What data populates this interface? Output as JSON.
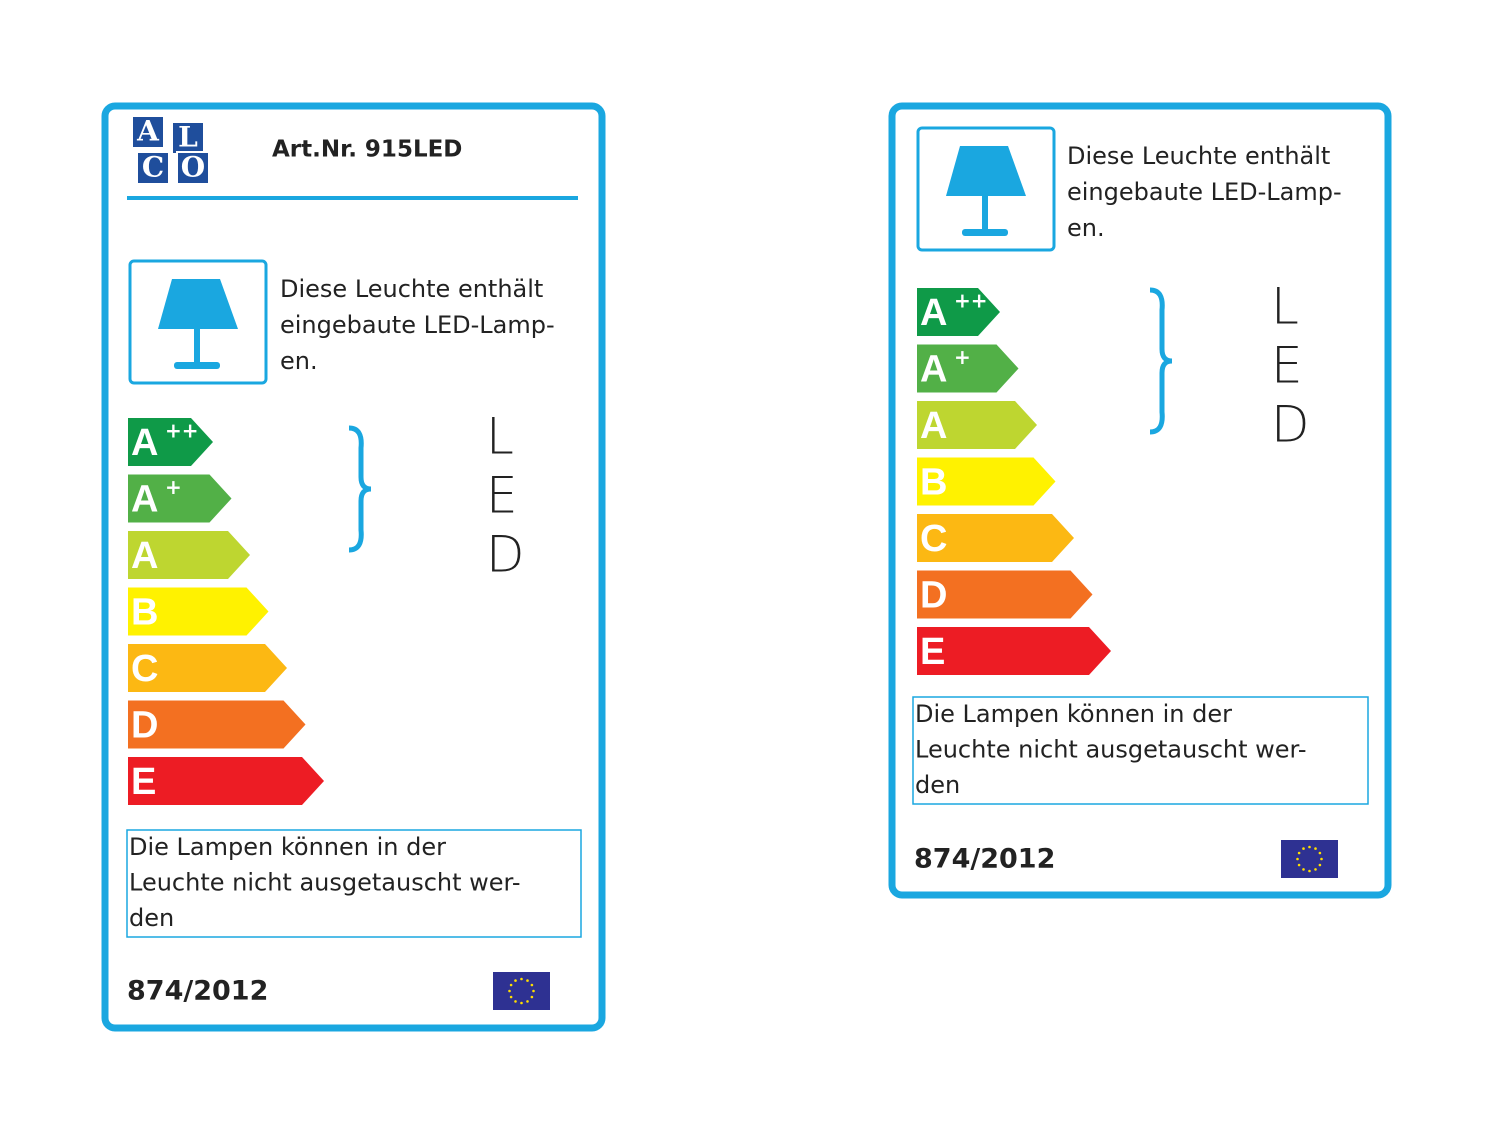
{
  "labels": [
    {
      "logo": [
        "A",
        "L",
        "C",
        "O"
      ],
      "article": "Art.Nr. 915LED",
      "description": [
        "Diese Leuchte enthält",
        "eingebaute LED-Lamp-",
        "en."
      ],
      "classes": [
        {
          "letter": "A",
          "sup": "++"
        },
        {
          "letter": "A",
          "sup": "+"
        },
        {
          "letter": "A"
        },
        {
          "letter": "B"
        },
        {
          "letter": "C"
        },
        {
          "letter": "D"
        },
        {
          "letter": "E"
        }
      ],
      "led": [
        "L",
        "E",
        "D"
      ],
      "note": [
        "Die Lampen können in der",
        "Leuchte nicht ausgetauscht wer-",
        "den"
      ],
      "regulation": "874/2012"
    },
    {
      "description": [
        "Diese Leuchte enthält",
        "eingebaute LED-Lamp-",
        "en."
      ],
      "classes": [
        {
          "letter": "A",
          "sup": "++"
        },
        {
          "letter": "A",
          "sup": "+"
        },
        {
          "letter": "A"
        },
        {
          "letter": "B"
        },
        {
          "letter": "C"
        },
        {
          "letter": "D"
        },
        {
          "letter": "E"
        }
      ],
      "led": [
        "L",
        "E",
        "D"
      ],
      "note": [
        "Die Lampen können in der",
        "Leuchte nicht ausgetauscht wer-",
        "den"
      ],
      "regulation": "874/2012"
    }
  ]
}
